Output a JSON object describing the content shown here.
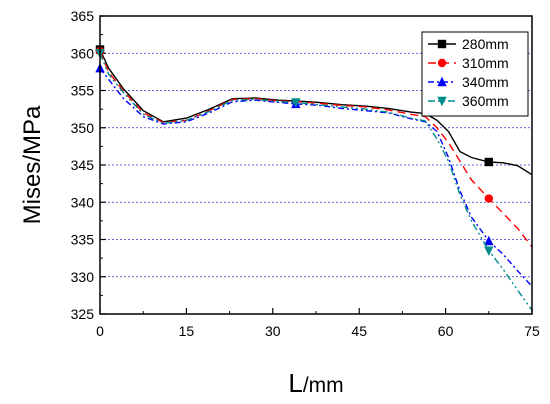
{
  "chart_data": {
    "type": "line",
    "title": "",
    "xlabel": "L/mm",
    "xlabel_main": "L",
    "xlabel_unit": "/mm",
    "ylabel": "Mises/MPa",
    "xlim": [
      0,
      75
    ],
    "ylim": [
      325,
      365
    ],
    "xticks": [
      0,
      15,
      30,
      45,
      60,
      75
    ],
    "yticks": [
      325,
      330,
      335,
      340,
      345,
      350,
      355,
      360,
      365
    ],
    "grid": "horizontal dotted",
    "legend_position": "top-right",
    "series": [
      {
        "name": "280mm",
        "color": "#000000",
        "dash": "solid",
        "marker": "square",
        "marker_x": [
          0,
          67.5
        ],
        "x": [
          0,
          1.5,
          4,
          7.5,
          11,
          15,
          19,
          23,
          27,
          31,
          34,
          38,
          42,
          46,
          50,
          54,
          56.5,
          58.5,
          60.5,
          62.5,
          64.5,
          67.5,
          70,
          72.5,
          75
        ],
        "y": [
          360.5,
          358,
          355.3,
          352.3,
          350.8,
          351.3,
          352.5,
          353.9,
          354.0,
          353.7,
          353.6,
          353.4,
          353.1,
          352.9,
          352.6,
          352.1,
          351.9,
          351.0,
          349.5,
          346.8,
          346.0,
          345.4,
          345.3,
          344.9,
          343.7
        ]
      },
      {
        "name": "310mm",
        "color": "#ff0000",
        "dash": "dashed",
        "marker": "circle",
        "marker_x": [
          0,
          67.5
        ],
        "x": [
          0,
          1.5,
          4,
          7.5,
          11,
          15,
          19,
          23,
          27,
          31,
          34,
          38,
          42,
          46,
          50,
          54,
          56.5,
          58.5,
          60.5,
          62.5,
          64.5,
          67.5,
          70,
          72.5,
          75
        ],
        "y": [
          360.3,
          357.5,
          355.0,
          352.0,
          350.7,
          351.0,
          352.3,
          353.8,
          353.9,
          353.6,
          353.5,
          353.3,
          353.0,
          352.8,
          352.4,
          351.8,
          351.5,
          350.0,
          348.0,
          345.5,
          343.0,
          340.5,
          338.5,
          336.5,
          334.0
        ]
      },
      {
        "name": "340mm",
        "color": "#0000ff",
        "dash": "dashdot",
        "marker": "triangle-up",
        "marker_x": [
          0,
          34,
          67.5
        ],
        "x": [
          0,
          1.5,
          4,
          7.5,
          11,
          15,
          19,
          23,
          27,
          31,
          34,
          38,
          42,
          46,
          50,
          54,
          56.5,
          58.5,
          60.5,
          62.5,
          64.5,
          67.5,
          70,
          72.5,
          75
        ],
        "y": [
          358.0,
          356.5,
          354.0,
          351.5,
          350.5,
          350.8,
          352.0,
          353.5,
          353.7,
          353.4,
          353.2,
          353.0,
          352.6,
          352.3,
          352.0,
          351.2,
          350.8,
          349.5,
          346.0,
          341.5,
          338.0,
          334.8,
          333.0,
          330.8,
          328.7
        ]
      },
      {
        "name": "360mm",
        "color": "#008b8b",
        "dash": "dashdotdot",
        "marker": "triangle-down",
        "marker_x": [
          0,
          34,
          67.5
        ],
        "x": [
          0,
          1.5,
          4,
          7.5,
          11,
          15,
          19,
          23,
          27,
          31,
          34,
          38,
          42,
          46,
          50,
          54,
          56.5,
          58.5,
          60.5,
          62.5,
          64.5,
          67.5,
          70,
          72.5,
          75
        ],
        "y": [
          360.0,
          357.2,
          354.8,
          351.8,
          350.6,
          351.0,
          352.2,
          353.7,
          353.8,
          353.5,
          353.4,
          353.1,
          352.8,
          352.5,
          352.1,
          351.3,
          350.9,
          348.5,
          345.5,
          341.0,
          337.5,
          333.5,
          331.0,
          328.2,
          325.5
        ]
      }
    ]
  }
}
